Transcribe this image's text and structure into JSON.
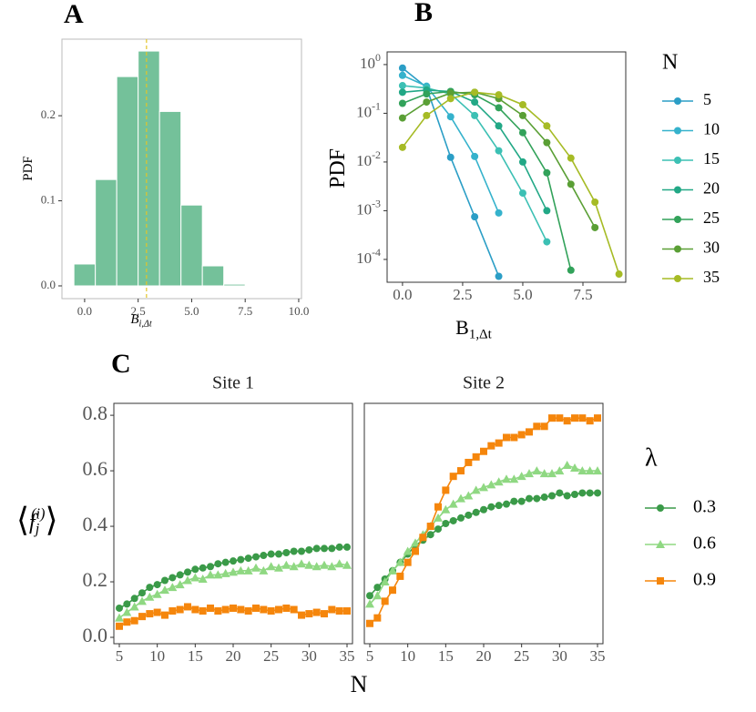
{
  "chart_data": [
    {
      "type": "histogram",
      "panel": "A",
      "bins": [
        -0.5,
        0.5,
        1.5,
        2.5,
        3.5,
        4.5,
        5.5,
        6.5,
        7.5
      ],
      "values": [
        0.0257,
        0.125,
        0.246,
        0.276,
        0.205,
        0.095,
        0.0235,
        0.002
      ],
      "color": "#74c19a",
      "mean_line": 2.89,
      "mean_line_color": "#e3c428",
      "xlim": [
        -1.06,
        10.13
      ],
      "ylim": [
        -0.015,
        0.29
      ],
      "xticks": [
        {
          "value": 0,
          "label": "0.0"
        },
        {
          "value": 2.5,
          "label": "2.5"
        },
        {
          "value": 5,
          "label": "5.0"
        },
        {
          "value": 7.5,
          "label": "7.5"
        },
        {
          "value": 10,
          "label": "10.0"
        }
      ],
      "yticks": [
        {
          "value": 0,
          "label": "0.0"
        },
        {
          "value": 0.1,
          "label": "0.1"
        },
        {
          "value": 0.2,
          "label": "0.2"
        }
      ],
      "x_label": {
        "base": "B",
        "sub": "i,Δt"
      },
      "y_label": {
        "base": "PDF"
      }
    },
    {
      "type": "line",
      "panel": "B",
      "log_y": true,
      "x": [
        0,
        1,
        2,
        3,
        4,
        5,
        6,
        7,
        8,
        9
      ],
      "series": [
        {
          "name": "5",
          "color": "#2b9ec6",
          "values": [
            0.85,
            0.34,
            0.0125,
            0.00075,
            4.5e-05,
            null,
            null,
            null,
            null,
            null
          ]
        },
        {
          "name": "10",
          "color": "#35b2cc",
          "values": [
            0.6,
            0.36,
            0.085,
            0.013,
            0.0009,
            null,
            null,
            null,
            null,
            null
          ]
        },
        {
          "name": "15",
          "color": "#3cc0b4",
          "values": [
            0.37,
            0.33,
            0.25,
            0.09,
            0.017,
            0.0023,
            0.00023,
            null,
            null,
            null
          ]
        },
        {
          "name": "20",
          "color": "#22a886",
          "values": [
            0.27,
            0.3,
            0.28,
            0.17,
            0.055,
            0.01,
            0.001,
            null,
            null,
            null
          ]
        },
        {
          "name": "25",
          "color": "#32a25a",
          "values": [
            0.16,
            0.25,
            0.28,
            0.24,
            0.13,
            0.04,
            0.006,
            6e-05,
            null,
            null
          ]
        },
        {
          "name": "30",
          "color": "#5a9f35",
          "values": [
            0.08,
            0.17,
            0.26,
            0.27,
            0.2,
            0.09,
            0.025,
            0.0035,
            0.00045,
            null
          ]
        },
        {
          "name": "35",
          "color": "#a6bb25",
          "values": [
            0.02,
            0.09,
            0.2,
            0.27,
            0.24,
            0.15,
            0.055,
            0.012,
            0.0015,
            5e-05
          ]
        }
      ],
      "xlim": [
        -0.64,
        9.28
      ],
      "ylim": [
        3.4e-05,
        1.82
      ],
      "xticks": [
        {
          "value": 0,
          "label": "0.0"
        },
        {
          "value": 2.5,
          "label": "2.5"
        },
        {
          "value": 5,
          "label": "5.0"
        },
        {
          "value": 7.5,
          "label": "7.5"
        }
      ],
      "yticks": [
        {
          "value": 1,
          "label": "10^0"
        },
        {
          "value": 0.1,
          "label": "10^-1"
        },
        {
          "value": 0.01,
          "label": "10^-2"
        },
        {
          "value": 0.001,
          "label": "10^-3"
        },
        {
          "value": 0.0001,
          "label": "10^-4"
        }
      ],
      "x_label": {
        "base": "B",
        "sub": "1,Δt"
      },
      "y_label": {
        "base": "PDF"
      },
      "legend_title": "N"
    },
    {
      "type": "line",
      "panel": "C",
      "title": "Site 1",
      "x": [
        5,
        6,
        7,
        8,
        9,
        10,
        11,
        12,
        13,
        14,
        15,
        16,
        17,
        18,
        19,
        20,
        21,
        22,
        23,
        24,
        25,
        26,
        27,
        28,
        29,
        30,
        31,
        32,
        33,
        34,
        35
      ],
      "series": [
        {
          "color": "#3a9a48",
          "marker": "circle",
          "values": [
            0.105,
            0.12,
            0.14,
            0.16,
            0.18,
            0.19,
            0.205,
            0.215,
            0.225,
            0.235,
            0.245,
            0.25,
            0.255,
            0.265,
            0.27,
            0.275,
            0.28,
            0.285,
            0.29,
            0.295,
            0.3,
            0.3,
            0.305,
            0.31,
            0.31,
            0.315,
            0.32,
            0.32,
            0.32,
            0.325,
            0.325
          ]
        },
        {
          "color": "#8fd882",
          "marker": "triangle",
          "values": [
            0.07,
            0.09,
            0.11,
            0.13,
            0.145,
            0.155,
            0.17,
            0.18,
            0.19,
            0.205,
            0.215,
            0.21,
            0.225,
            0.225,
            0.23,
            0.235,
            0.24,
            0.24,
            0.25,
            0.24,
            0.255,
            0.25,
            0.26,
            0.255,
            0.265,
            0.26,
            0.255,
            0.26,
            0.255,
            0.265,
            0.26
          ]
        },
        {
          "color": "#f5860c",
          "marker": "square",
          "values": [
            0.04,
            0.055,
            0.06,
            0.075,
            0.085,
            0.09,
            0.08,
            0.095,
            0.1,
            0.11,
            0.1,
            0.095,
            0.105,
            0.095,
            0.1,
            0.105,
            0.1,
            0.095,
            0.105,
            0.1,
            0.095,
            0.1,
            0.105,
            0.1,
            0.08,
            0.085,
            0.09,
            0.085,
            0.1,
            0.095,
            0.095
          ]
        }
      ],
      "xlim": [
        4.28,
        35.72
      ],
      "ylim": [
        -0.023,
        0.843
      ],
      "xticks": [
        5,
        10,
        15,
        20,
        25,
        30,
        35
      ],
      "yticks": [
        {
          "value": 0,
          "label": "0.0"
        },
        {
          "value": 0.2,
          "label": "0.2"
        },
        {
          "value": 0.4,
          "label": "0.4"
        },
        {
          "value": 0.6,
          "label": "0.6"
        },
        {
          "value": 0.8,
          "label": "0.8"
        }
      ],
      "x_label": {
        "base": "N"
      },
      "y_label": {
        "open": "⟨",
        "base": "f",
        "sub": "j",
        "sup": "(i)",
        "close": "⟩"
      }
    },
    {
      "type": "line",
      "title": "Site 2",
      "x": [
        5,
        6,
        7,
        8,
        9,
        10,
        11,
        12,
        13,
        14,
        15,
        16,
        17,
        18,
        19,
        20,
        21,
        22,
        23,
        24,
        25,
        26,
        27,
        28,
        29,
        30,
        31,
        32,
        33,
        34,
        35
      ],
      "series": [
        {
          "name": "0.3",
          "color": "#3a9a48",
          "marker": "circle",
          "values": [
            0.15,
            0.18,
            0.21,
            0.24,
            0.27,
            0.3,
            0.33,
            0.35,
            0.37,
            0.39,
            0.41,
            0.42,
            0.43,
            0.44,
            0.45,
            0.46,
            0.47,
            0.475,
            0.48,
            0.49,
            0.49,
            0.5,
            0.5,
            0.505,
            0.51,
            0.52,
            0.51,
            0.515,
            0.52,
            0.52,
            0.52
          ]
        },
        {
          "name": "0.6",
          "color": "#8fd882",
          "marker": "triangle",
          "values": [
            0.12,
            0.15,
            0.2,
            0.24,
            0.27,
            0.31,
            0.34,
            0.37,
            0.4,
            0.43,
            0.46,
            0.48,
            0.5,
            0.51,
            0.53,
            0.54,
            0.55,
            0.56,
            0.57,
            0.57,
            0.58,
            0.59,
            0.6,
            0.59,
            0.59,
            0.6,
            0.62,
            0.61,
            0.6,
            0.6,
            0.6
          ]
        },
        {
          "name": "0.9",
          "color": "#f5860c",
          "marker": "square",
          "values": [
            0.05,
            0.07,
            0.13,
            0.17,
            0.22,
            0.27,
            0.31,
            0.36,
            0.4,
            0.47,
            0.53,
            0.58,
            0.6,
            0.63,
            0.65,
            0.67,
            0.69,
            0.7,
            0.72,
            0.72,
            0.73,
            0.74,
            0.76,
            0.76,
            0.79,
            0.79,
            0.78,
            0.79,
            0.79,
            0.78,
            0.79
          ]
        }
      ],
      "xlim": [
        4.28,
        35.72
      ],
      "ylim": [
        -0.023,
        0.843
      ],
      "xticks": [
        5,
        10,
        15,
        20,
        25,
        30,
        35
      ],
      "legend_title": "λ"
    }
  ]
}
